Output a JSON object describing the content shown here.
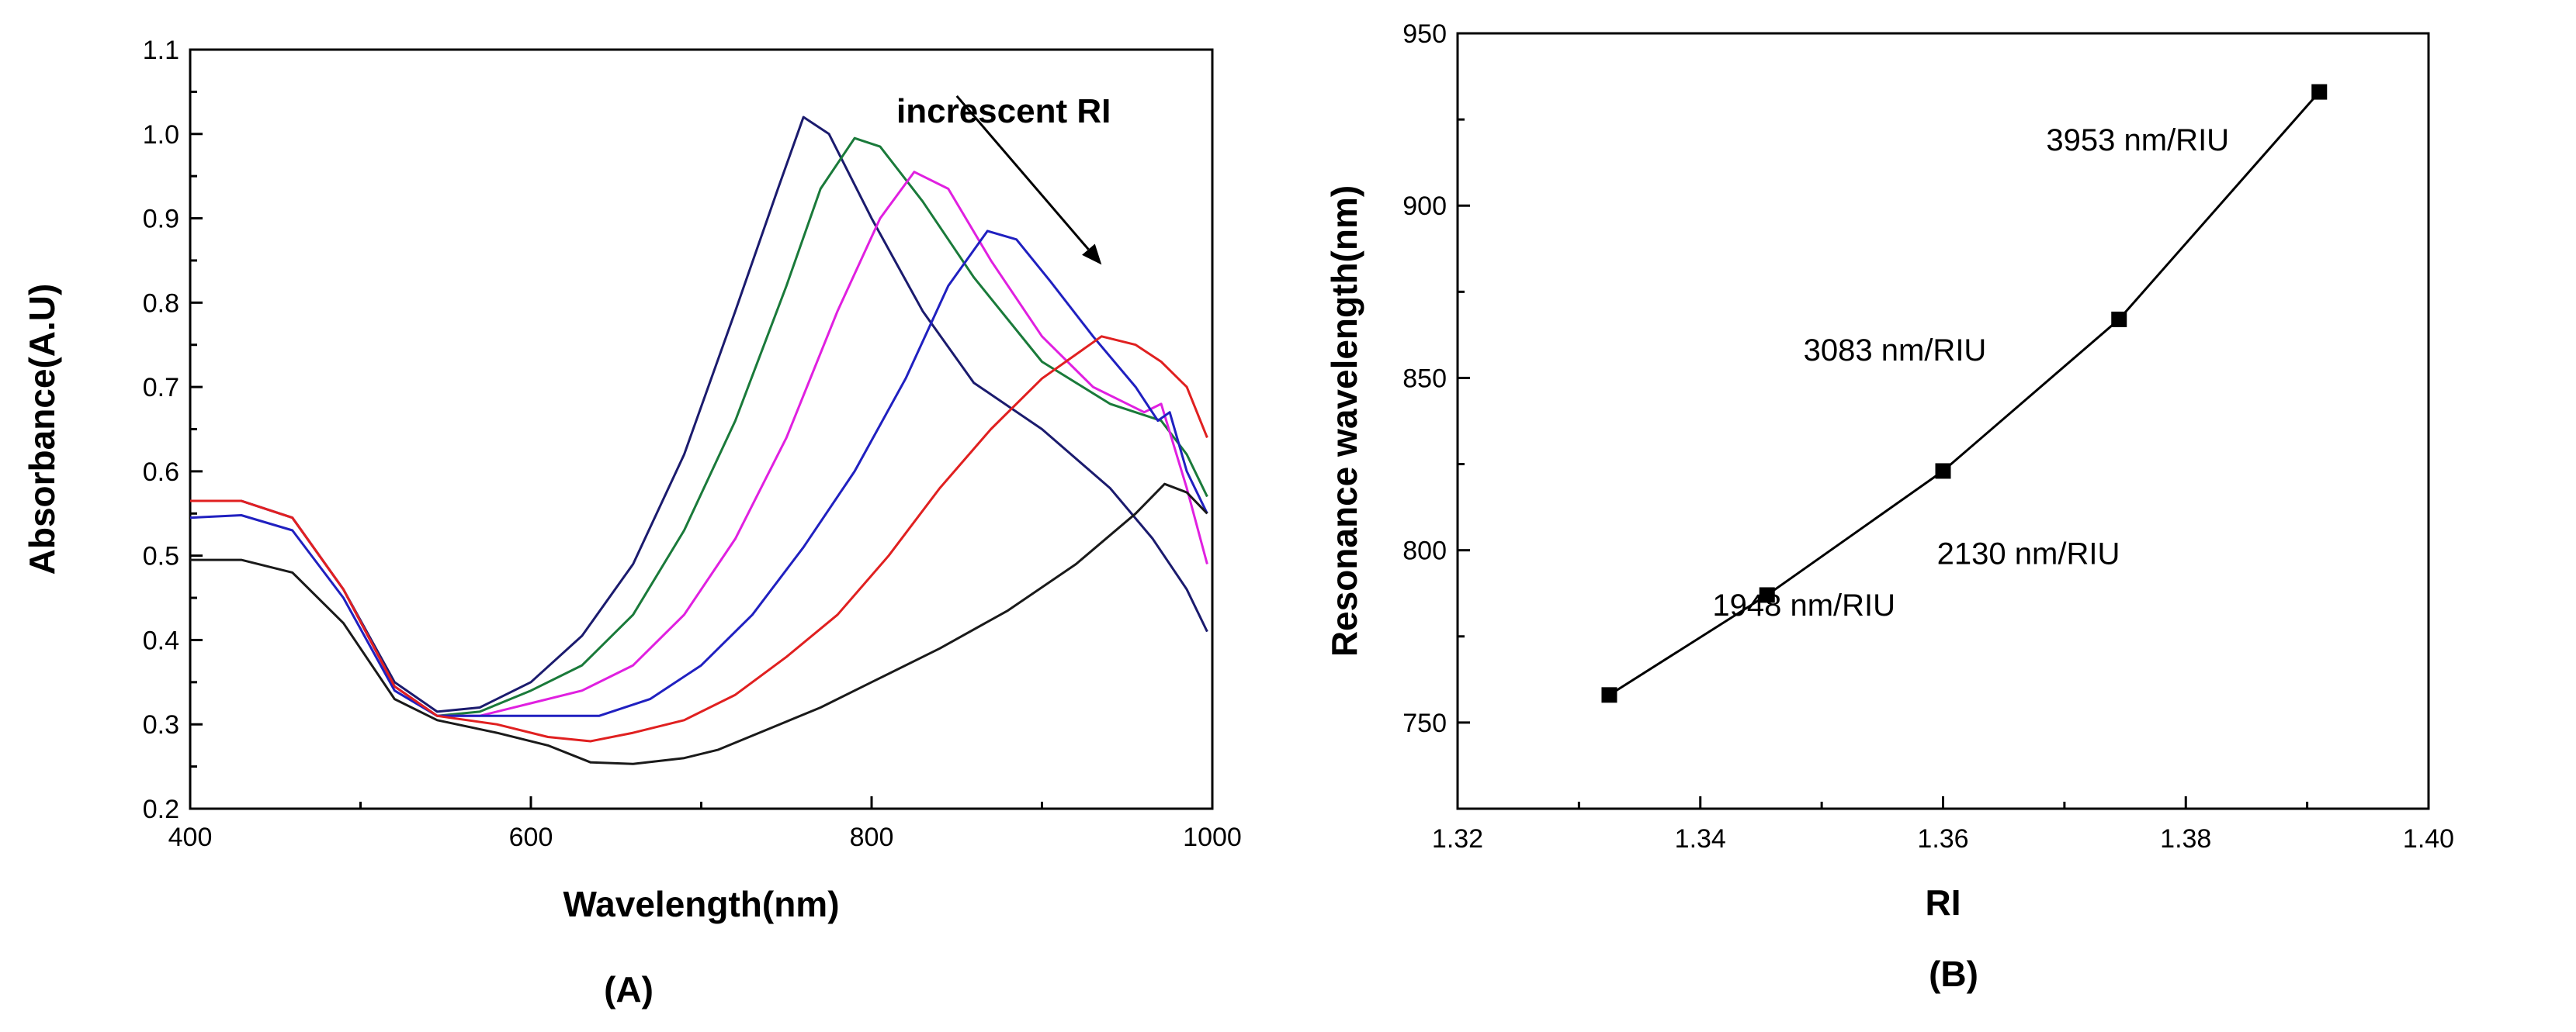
{
  "chart_data": [
    {
      "type": "line",
      "panel_label": "(A)",
      "title": "",
      "xlabel": "Wavelength(nm)",
      "ylabel": "Absorbance(A.U)",
      "xlim": [
        400,
        1000
      ],
      "ylim": [
        0.2,
        1.1
      ],
      "xticks": [
        400,
        600,
        800,
        1000
      ],
      "yticks": [
        0.2,
        0.3,
        0.4,
        0.5,
        0.6,
        0.7,
        0.8,
        0.9,
        1.0,
        1.1
      ],
      "grid": false,
      "annotation": {
        "text": "increscent RI",
        "arrow_from": [
          850,
          1.045
        ],
        "arrow_to": [
          935,
          0.845
        ]
      },
      "series": [
        {
          "color": "#1b1b6e",
          "points": [
            [
              400,
              0.565
            ],
            [
              430,
              0.565
            ],
            [
              460,
              0.545
            ],
            [
              490,
              0.46
            ],
            [
              520,
              0.35
            ],
            [
              545,
              0.315
            ],
            [
              570,
              0.32
            ],
            [
              600,
              0.35
            ],
            [
              630,
              0.405
            ],
            [
              660,
              0.49
            ],
            [
              690,
              0.62
            ],
            [
              720,
              0.79
            ],
            [
              745,
              0.935
            ],
            [
              760,
              1.02
            ],
            [
              775,
              1.0
            ],
            [
              800,
              0.9
            ],
            [
              830,
              0.79
            ],
            [
              860,
              0.705
            ],
            [
              900,
              0.65
            ],
            [
              940,
              0.58
            ],
            [
              965,
              0.52
            ],
            [
              985,
              0.46
            ],
            [
              997,
              0.41
            ]
          ]
        },
        {
          "color": "#1a7a3a",
          "points": [
            [
              400,
              0.565
            ],
            [
              430,
              0.565
            ],
            [
              460,
              0.545
            ],
            [
              490,
              0.46
            ],
            [
              520,
              0.345
            ],
            [
              545,
              0.31
            ],
            [
              570,
              0.315
            ],
            [
              600,
              0.34
            ],
            [
              630,
              0.37
            ],
            [
              660,
              0.43
            ],
            [
              690,
              0.53
            ],
            [
              720,
              0.66
            ],
            [
              750,
              0.82
            ],
            [
              770,
              0.935
            ],
            [
              790,
              0.995
            ],
            [
              805,
              0.985
            ],
            [
              830,
              0.92
            ],
            [
              860,
              0.83
            ],
            [
              900,
              0.73
            ],
            [
              940,
              0.68
            ],
            [
              970,
              0.66
            ],
            [
              985,
              0.62
            ],
            [
              997,
              0.57
            ]
          ]
        },
        {
          "color": "#e020e0",
          "points": [
            [
              400,
              0.565
            ],
            [
              430,
              0.565
            ],
            [
              460,
              0.545
            ],
            [
              490,
              0.46
            ],
            [
              520,
              0.345
            ],
            [
              545,
              0.31
            ],
            [
              570,
              0.31
            ],
            [
              600,
              0.325
            ],
            [
              630,
              0.34
            ],
            [
              660,
              0.37
            ],
            [
              690,
              0.43
            ],
            [
              720,
              0.52
            ],
            [
              750,
              0.64
            ],
            [
              780,
              0.79
            ],
            [
              805,
              0.9
            ],
            [
              825,
              0.955
            ],
            [
              845,
              0.935
            ],
            [
              870,
              0.85
            ],
            [
              900,
              0.76
            ],
            [
              930,
              0.7
            ],
            [
              960,
              0.67
            ],
            [
              970,
              0.68
            ],
            [
              985,
              0.58
            ],
            [
              997,
              0.49
            ]
          ]
        },
        {
          "color": "#2020c0",
          "points": [
            [
              400,
              0.545
            ],
            [
              430,
              0.548
            ],
            [
              460,
              0.53
            ],
            [
              490,
              0.45
            ],
            [
              520,
              0.34
            ],
            [
              545,
              0.31
            ],
            [
              580,
              0.31
            ],
            [
              610,
              0.31
            ],
            [
              640,
              0.31
            ],
            [
              670,
              0.33
            ],
            [
              700,
              0.37
            ],
            [
              730,
              0.43
            ],
            [
              760,
              0.51
            ],
            [
              790,
              0.6
            ],
            [
              820,
              0.71
            ],
            [
              845,
              0.82
            ],
            [
              868,
              0.885
            ],
            [
              885,
              0.875
            ],
            [
              905,
              0.825
            ],
            [
              930,
              0.76
            ],
            [
              955,
              0.7
            ],
            [
              968,
              0.66
            ],
            [
              975,
              0.67
            ],
            [
              985,
              0.6
            ],
            [
              997,
              0.55
            ]
          ]
        },
        {
          "color": "#e02020",
          "points": [
            [
              400,
              0.565
            ],
            [
              430,
              0.565
            ],
            [
              460,
              0.545
            ],
            [
              490,
              0.46
            ],
            [
              520,
              0.345
            ],
            [
              545,
              0.31
            ],
            [
              580,
              0.3
            ],
            [
              610,
              0.285
            ],
            [
              635,
              0.28
            ],
            [
              660,
              0.29
            ],
            [
              690,
              0.305
            ],
            [
              720,
              0.335
            ],
            [
              750,
              0.38
            ],
            [
              780,
              0.43
            ],
            [
              810,
              0.5
            ],
            [
              840,
              0.58
            ],
            [
              870,
              0.65
            ],
            [
              900,
              0.71
            ],
            [
              935,
              0.76
            ],
            [
              955,
              0.75
            ],
            [
              970,
              0.73
            ],
            [
              985,
              0.7
            ],
            [
              997,
              0.64
            ]
          ]
        },
        {
          "color": "#1a1a1a",
          "points": [
            [
              400,
              0.495
            ],
            [
              430,
              0.495
            ],
            [
              460,
              0.48
            ],
            [
              490,
              0.42
            ],
            [
              520,
              0.33
            ],
            [
              545,
              0.305
            ],
            [
              580,
              0.29
            ],
            [
              610,
              0.275
            ],
            [
              635,
              0.255
            ],
            [
              660,
              0.253
            ],
            [
              690,
              0.26
            ],
            [
              710,
              0.27
            ],
            [
              740,
              0.295
            ],
            [
              770,
              0.32
            ],
            [
              800,
              0.35
            ],
            [
              840,
              0.39
            ],
            [
              880,
              0.435
            ],
            [
              920,
              0.49
            ],
            [
              955,
              0.55
            ],
            [
              972,
              0.585
            ],
            [
              985,
              0.575
            ],
            [
              997,
              0.55
            ]
          ]
        }
      ]
    },
    {
      "type": "line",
      "panel_label": "(B)",
      "title": "",
      "xlabel": "RI",
      "ylabel": "Resonance wavelength(nm)",
      "xlim": [
        1.32,
        1.4
      ],
      "ylim": [
        725,
        950
      ],
      "xticks": [
        "1.32",
        "1.34",
        "1.36",
        "1.38",
        "1.40"
      ],
      "xtick_values": [
        1.32,
        1.34,
        1.36,
        1.38,
        1.4
      ],
      "yticks": [
        750,
        800,
        850,
        900,
        950
      ],
      "grid": false,
      "series": [
        {
          "x": [
            1.3325,
            1.3455,
            1.36,
            1.3745,
            1.391
          ],
          "y": [
            758,
            787,
            823,
            867,
            933
          ]
        }
      ],
      "annotations": [
        {
          "text": "1948 nm/RIU",
          "x": 1.341,
          "y": 781
        },
        {
          "text": "2130 nm/RIU",
          "x": 1.3595,
          "y": 796
        },
        {
          "text": "3083 nm/RIU",
          "x": 1.3485,
          "y": 855
        },
        {
          "text": "3953 nm/RIU",
          "x": 1.3685,
          "y": 916
        }
      ]
    }
  ]
}
